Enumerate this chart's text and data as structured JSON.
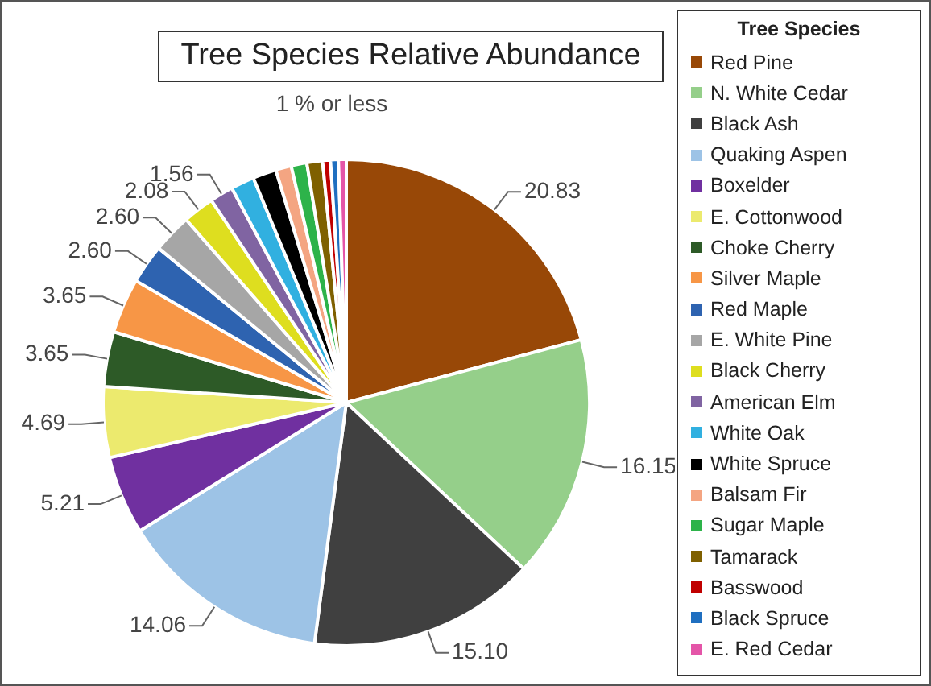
{
  "chart_data": {
    "type": "pie",
    "title": "Tree Species Relative Abundance",
    "legend_title": "Tree Species",
    "legend": "right",
    "categories": [
      "Red Pine",
      "N. White Cedar",
      "Black Ash",
      "Quaking Aspen",
      "Boxelder",
      "E. Cottonwood",
      "Choke Cherry",
      "Silver Maple",
      "Red Maple",
      "E. White Pine",
      "Black Cherry",
      "American Elm",
      "White Oak",
      "White Spruce",
      "Balsam Fir",
      "Sugar Maple",
      "Tamarack",
      "Basswood",
      "Black Spruce",
      "E. Red Cedar"
    ],
    "values": [
      20.83,
      16.15,
      15.1,
      14.06,
      5.21,
      4.69,
      3.65,
      3.65,
      2.6,
      2.6,
      2.08,
      1.56,
      1.56,
      1.56,
      1.04,
      1.04,
      1.04,
      0.52,
      0.52,
      0.52
    ],
    "value_labels": [
      "20.83",
      "16.15",
      "15.10",
      "14.06",
      "5.21",
      "4.69",
      "3.65",
      "3.65",
      "2.60",
      "2.60",
      "2.08",
      "1.56",
      null,
      null,
      null,
      null,
      null,
      null,
      null,
      null
    ],
    "colors": [
      "#984807",
      "#95cf8a",
      "#404040",
      "#9dc3e6",
      "#7030a0",
      "#ecea6e",
      "#2d5a27",
      "#f79646",
      "#2e63b0",
      "#a6a6a6",
      "#dede1f",
      "#8064a2",
      "#31b0e0",
      "#000000",
      "#f4a582",
      "#2db34a",
      "#7f6000",
      "#c00000",
      "#1f6fc0",
      "#e455a8"
    ],
    "annotations": [
      "1 % or less"
    ]
  }
}
